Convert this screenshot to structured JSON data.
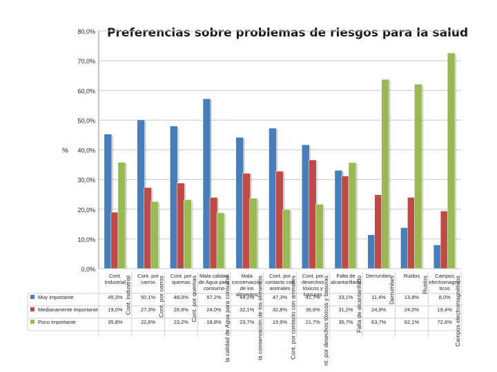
{
  "chart_data": {
    "type": "bar",
    "title": "Preferencias sobre problemas de riesgos para la salud",
    "ylabel": "%",
    "ylim": [
      0,
      80
    ],
    "yticks": [
      "0,0%",
      "10,0%",
      "20,0%",
      "30,0%",
      "40,0%",
      "50,0%",
      "60,0%",
      "70,0%",
      "80,0%"
    ],
    "categories": [
      "Cont. Industrial",
      "Cont. por carros",
      "Cont. por quemas",
      "Mala calidad de Agua para consumo",
      "Mala conservación de los alimentos",
      "Cont. por contacto con animales",
      "Cont. por desechos tóxicos y basuras",
      "Falta de alcantarillado",
      "Derrumbes",
      "Ruidos",
      "Campos electromagnéticos"
    ],
    "category_labels_wrapped": [
      [
        "Cont.",
        "Industrial"
      ],
      [
        "Cont. por",
        "carros"
      ],
      [
        "Cont. por",
        "quemas"
      ],
      [
        "Mala calidad",
        "de Agua para",
        "consumo"
      ],
      [
        "Mala",
        "conservación",
        "de los",
        "alimentos"
      ],
      [
        "Cont. por",
        "contacto con",
        "animales"
      ],
      [
        "Cont. por",
        "desechos",
        "tóxicos y",
        "basuras"
      ],
      [
        "Falta de",
        "alcantarillado"
      ],
      [
        "Derrumbes"
      ],
      [
        "Ruidos"
      ],
      [
        "Campos",
        "electromagne",
        "ticos"
      ]
    ],
    "rotated_labels": [
      "Cont. Industrial",
      "Cont. por carros",
      "Cont. por quemas",
      "la calidad de Agua para consumo",
      "la conservación de los alimentos",
      "Cont. por contacto con animales",
      "nt. por desechos tóxicos y basuras",
      "Falta de alcantarillado",
      "Derrumbes",
      "Ruidos",
      "Campos electromagnéticos"
    ],
    "series": [
      {
        "name": "Muy importante",
        "color": "#4a7ebb",
        "values": [
          45.3,
          50.1,
          48.0,
          57.2,
          44.2,
          47.3,
          41.7,
          33.1,
          11.4,
          13.8,
          8.0
        ],
        "labels": [
          "45,3%",
          "50,1%",
          "48,0%",
          "57,2%",
          "44,2%",
          "47,3%",
          "41,7%",
          "33,1%",
          "11,4%",
          "13,8%",
          "8,0%"
        ]
      },
      {
        "name": "Medianamente importante",
        "color": "#be4b48",
        "values": [
          19.0,
          27.3,
          28.8,
          24.0,
          32.1,
          32.8,
          36.6,
          31.2,
          24.9,
          24.0,
          19.4
        ],
        "labels": [
          "19,0%",
          "27,3%",
          "28,8%",
          "24,0%",
          "32,1%",
          "32,8%",
          "36,6%",
          "31,2%",
          "24,9%",
          "24,0%",
          "19,4%"
        ]
      },
      {
        "name": "Poco importante",
        "color": "#98b954",
        "values": [
          35.8,
          22.6,
          23.2,
          18.8,
          23.7,
          19.9,
          21.7,
          35.7,
          63.7,
          62.1,
          72.6
        ],
        "labels": [
          "35,8%",
          "22,6%",
          "23,2%",
          "18,8%",
          "23,7%",
          "19,9%",
          "21,7%",
          "35,7%",
          "63,7%",
          "62,1%",
          "72,6%"
        ]
      }
    ],
    "grid": true,
    "legend": "left, in data table"
  }
}
